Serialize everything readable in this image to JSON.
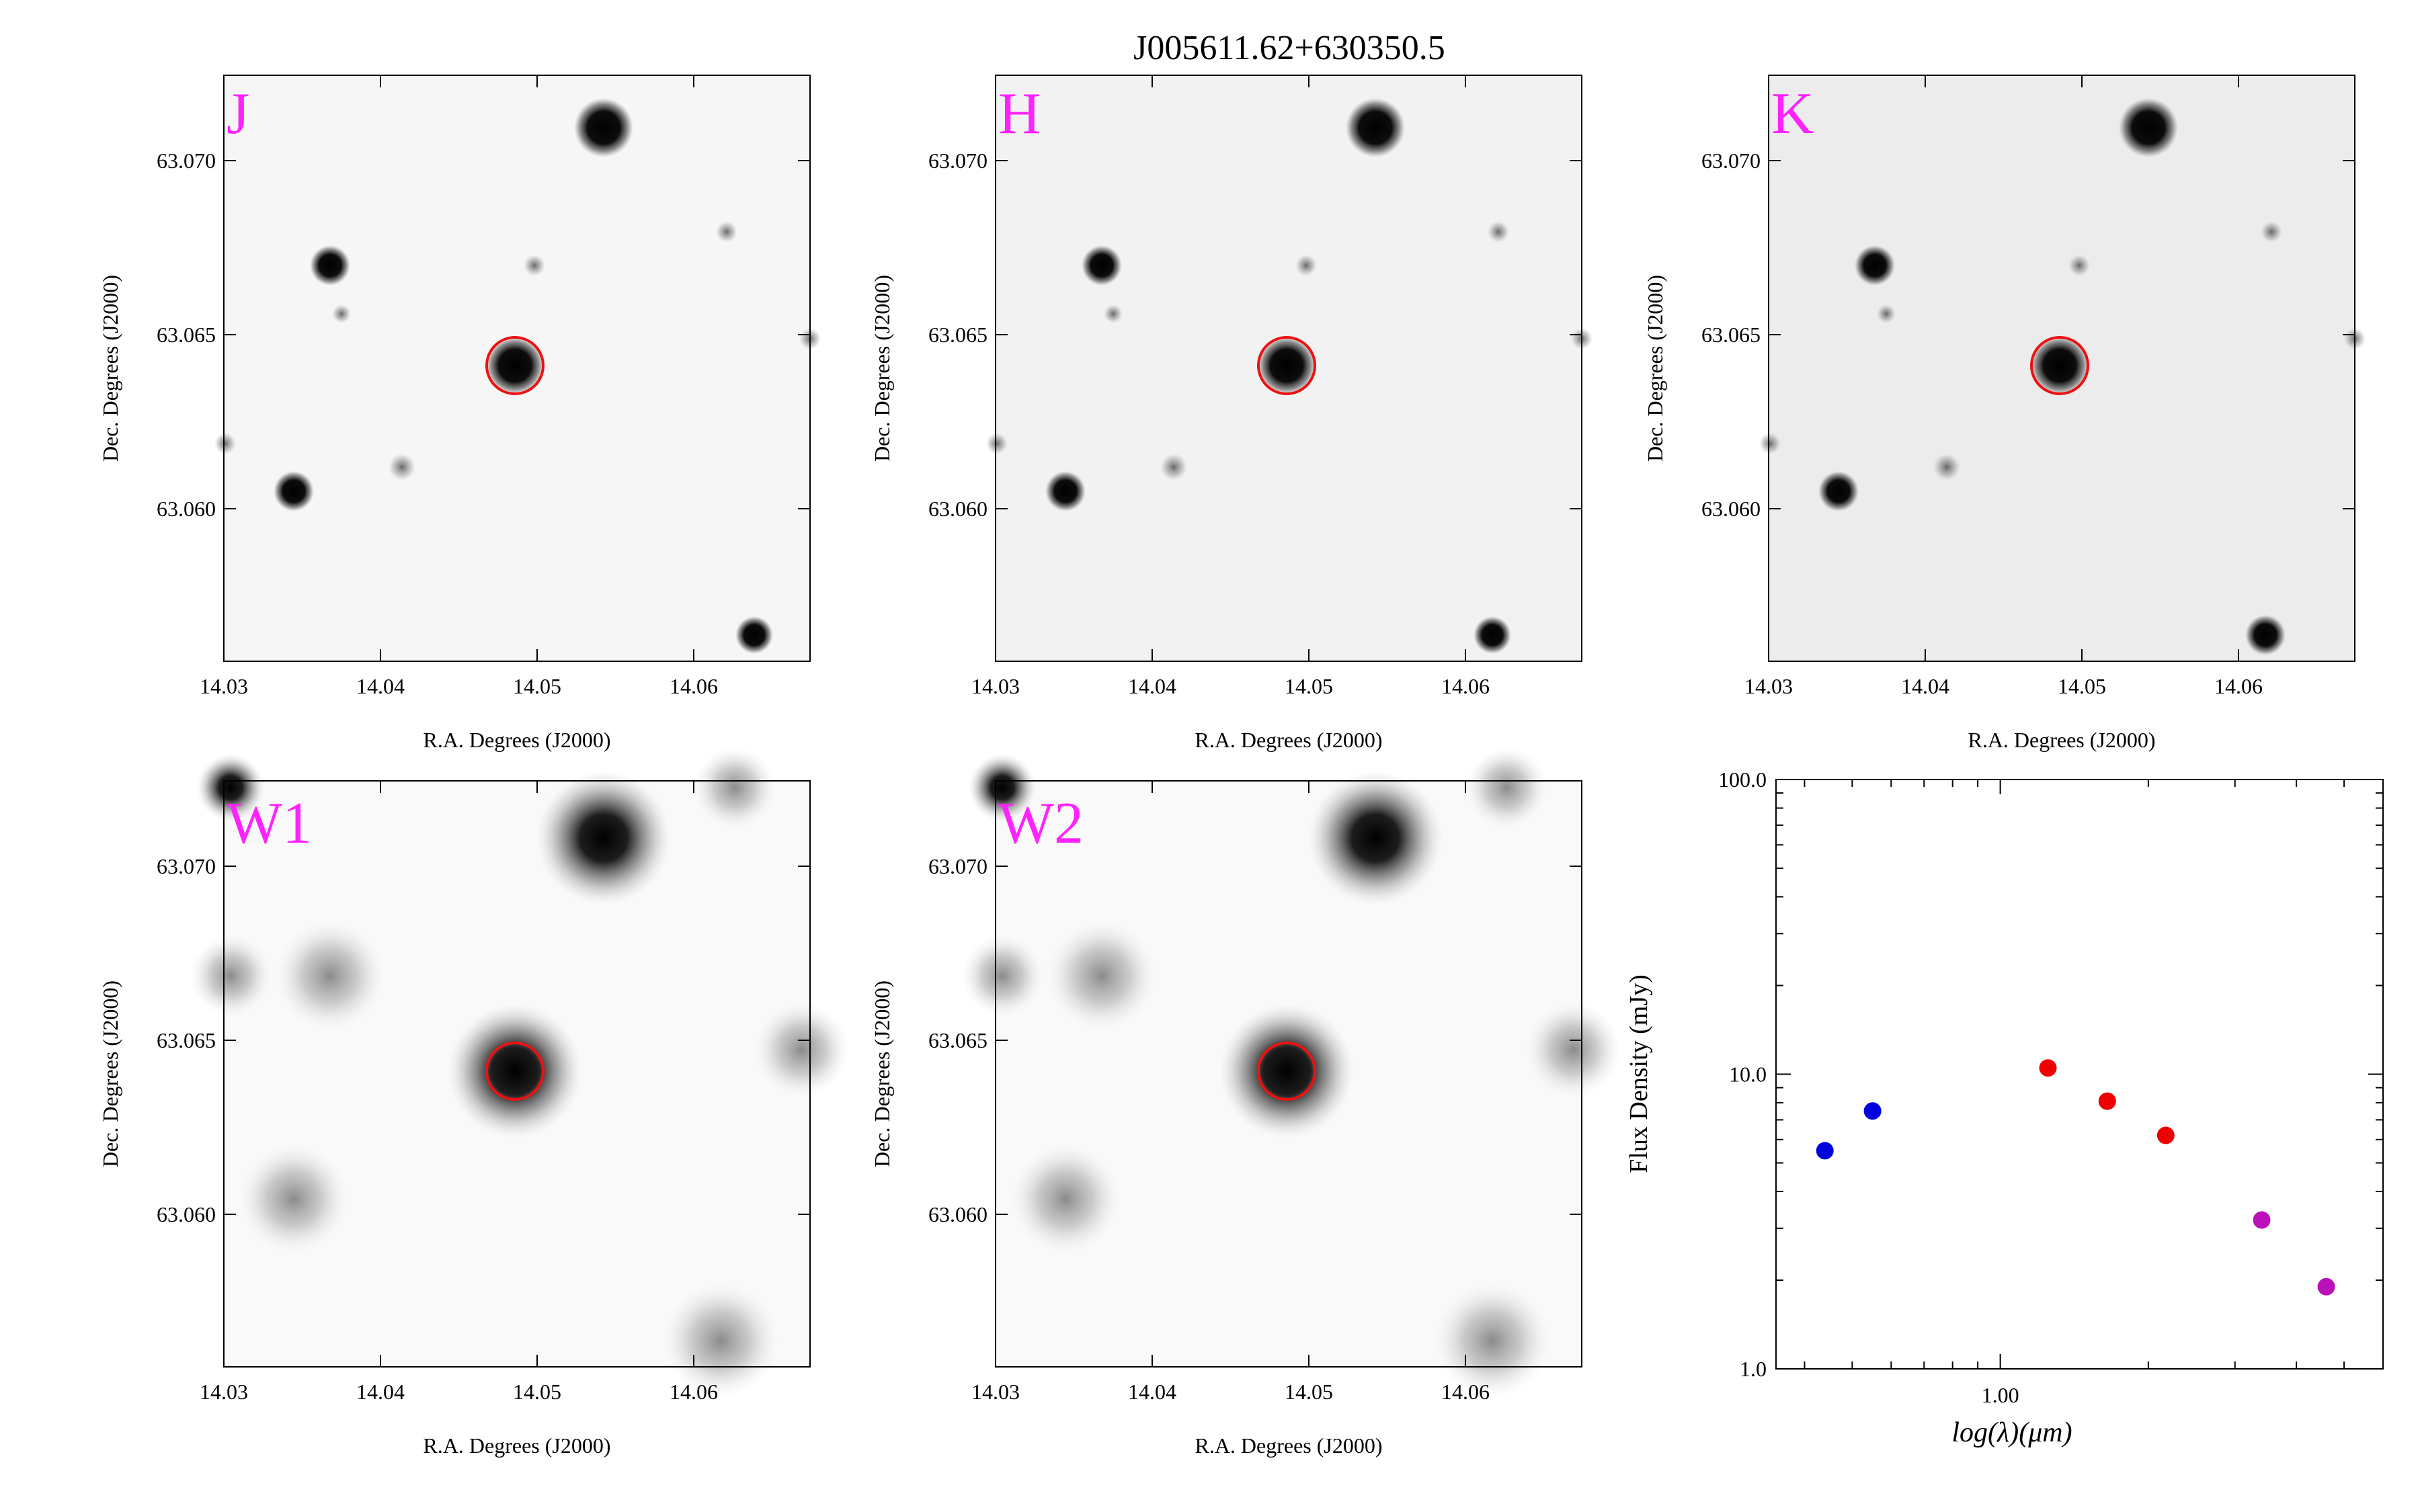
{
  "figure": {
    "title": "J005611.62+630350.5"
  },
  "cutouts": {
    "xlabel": "R.A. Degrees (J2000)",
    "ylabel": "Dec. Degrees (J2000)",
    "xticks": [
      "14.03",
      "14.04",
      "14.05",
      "14.06"
    ],
    "yticks": [
      "63.060",
      "63.065",
      "63.070"
    ],
    "panels": [
      {
        "band": "J"
      },
      {
        "band": "H"
      },
      {
        "band": "K"
      },
      {
        "band": "W1"
      },
      {
        "band": "W2"
      }
    ],
    "band_label_color": "#ff22ff",
    "circle_color": "#ee1111"
  },
  "chart_data": {
    "type": "scatter",
    "xlabel": "log(λ)(μm)",
    "ylabel": "Flux Density (mJy)",
    "xscale": "log",
    "yscale": "log",
    "xlim": [
      0.35,
      6.0
    ],
    "ylim": [
      1.0,
      100.0
    ],
    "xtick_labels": [
      "1.00"
    ],
    "ytick_labels": [
      "1.0",
      "10.0",
      "100.0"
    ],
    "grid": false,
    "series": [
      {
        "color": "#0000dd",
        "points": [
          [
            0.44,
            5.5
          ],
          [
            0.55,
            7.5
          ]
        ]
      },
      {
        "color": "#ee0000",
        "points": [
          [
            1.25,
            10.5
          ],
          [
            1.65,
            8.1
          ],
          [
            2.17,
            6.2
          ]
        ]
      },
      {
        "color": "#bb11bb",
        "points": [
          [
            3.4,
            3.2
          ],
          [
            4.6,
            1.9
          ]
        ]
      }
    ]
  }
}
